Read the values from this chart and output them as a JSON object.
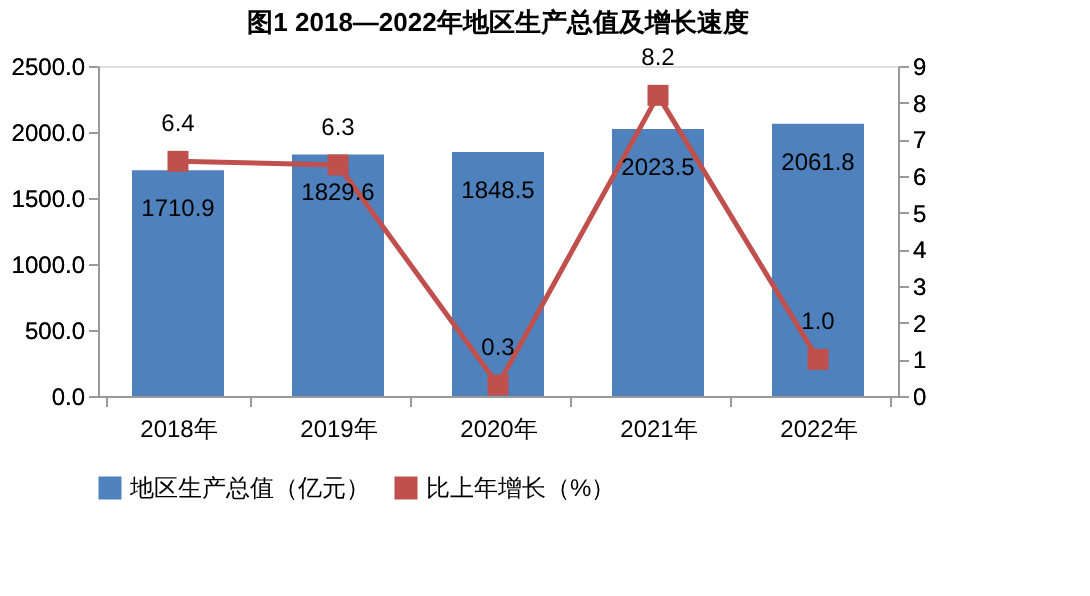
{
  "chart_data": {
    "type": "bar",
    "title": "图1   2018—2022年地区生产总值及增长速度",
    "categories": [
      "2018年",
      "2019年",
      "2020年",
      "2021年",
      "2022年"
    ],
    "series": [
      {
        "name": "地区生产总值（亿元）",
        "color": "#4f81bd",
        "values": [
          1710.9,
          1829.6,
          1848.5,
          2023.5,
          2061.8
        ]
      },
      {
        "name": "比上年增长（%）",
        "type": "line",
        "axis": "y2",
        "color": "#c0504d",
        "marker": "square",
        "values": [
          6.4,
          6.3,
          0.3,
          8.2,
          1.0
        ],
        "value_labels": [
          "6.4",
          "6.3",
          "0.3",
          "8.2",
          "1.0"
        ]
      }
    ],
    "ylim": [
      0,
      2500
    ],
    "yticks": [
      {
        "value": 0,
        "label": "0.0"
      },
      {
        "value": 500,
        "label": "500.0"
      },
      {
        "value": 1000,
        "label": "1000.0"
      },
      {
        "value": 1500,
        "label": "1500.0"
      },
      {
        "value": 2000,
        "label": "2000.0"
      },
      {
        "value": 2500,
        "label": "2500.0"
      }
    ],
    "y2lim": [
      0,
      9
    ],
    "y2ticks": [
      0,
      1,
      2,
      3,
      4,
      5,
      6,
      7,
      8,
      9
    ],
    "data_labels": true,
    "grid": false,
    "legend": "bottom"
  }
}
